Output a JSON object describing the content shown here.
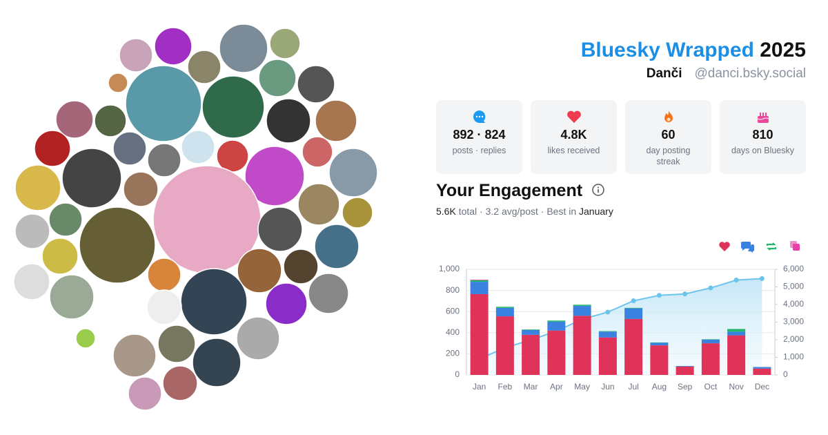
{
  "header": {
    "title": "Bluesky Wrapped",
    "year": "2025",
    "name": "Danči",
    "handle": "@danci.bsky.social"
  },
  "stats": [
    {
      "value": "892 · 824",
      "label": "posts · replies"
    },
    {
      "value": "4.8K",
      "label": "likes received"
    },
    {
      "value": "60",
      "label": "day posting streak"
    },
    {
      "value": "810",
      "label": "days on Bluesky"
    }
  ],
  "engagement": {
    "title": "Your Engagement",
    "total": "5.6K",
    "summary": "total · 3.2 avg/post · Best in",
    "best": "January"
  },
  "chart_data": {
    "type": "bar",
    "stacked": true,
    "categories": [
      "Jan",
      "Feb",
      "Mar",
      "Apr",
      "May",
      "Jun",
      "Jul",
      "Aug",
      "Sep",
      "Oct",
      "Nov",
      "Dec"
    ],
    "series": [
      {
        "color": "#e0335a",
        "values": [
          765,
          555,
          380,
          420,
          560,
          355,
          530,
          280,
          80,
          300,
          375,
          60
        ]
      },
      {
        "color": "#3b82e0",
        "values": [
          117,
          80,
          45,
          85,
          95,
          55,
          100,
          25,
          5,
          35,
          35,
          15
        ]
      },
      {
        "color": "#22b86a",
        "values": [
          15,
          10,
          5,
          10,
          10,
          5,
          5,
          3,
          0,
          3,
          25,
          0
        ]
      },
      {
        "color": "#e83fa8",
        "values": [
          5,
          0,
          0,
          0,
          0,
          0,
          0,
          0,
          0,
          0,
          0,
          0
        ]
      },
      {
        "color": "#6cc4ec",
        "axis": "y2",
        "values": [
          900,
          1550,
          1980,
          2490,
          3160,
          3570,
          4210,
          4520,
          4600,
          4940,
          5390,
          5470
        ]
      }
    ],
    "ylim": [
      0,
      1000
    ],
    "yticks": [
      0,
      200,
      400,
      600,
      800,
      {
        "value": 1000,
        "label": "1,000"
      }
    ],
    "y2lim": [
      0,
      6000
    ],
    "y2ticks": [
      0,
      {
        "value": 1000,
        "label": "1,000"
      },
      {
        "value": 2000,
        "label": "2,000"
      },
      {
        "value": 3000,
        "label": "3,000"
      },
      {
        "value": 4000,
        "label": "4,000"
      },
      {
        "value": 5000,
        "label": "5,000"
      },
      {
        "value": 6000,
        "label": "6,000"
      }
    ],
    "grid": true
  }
}
